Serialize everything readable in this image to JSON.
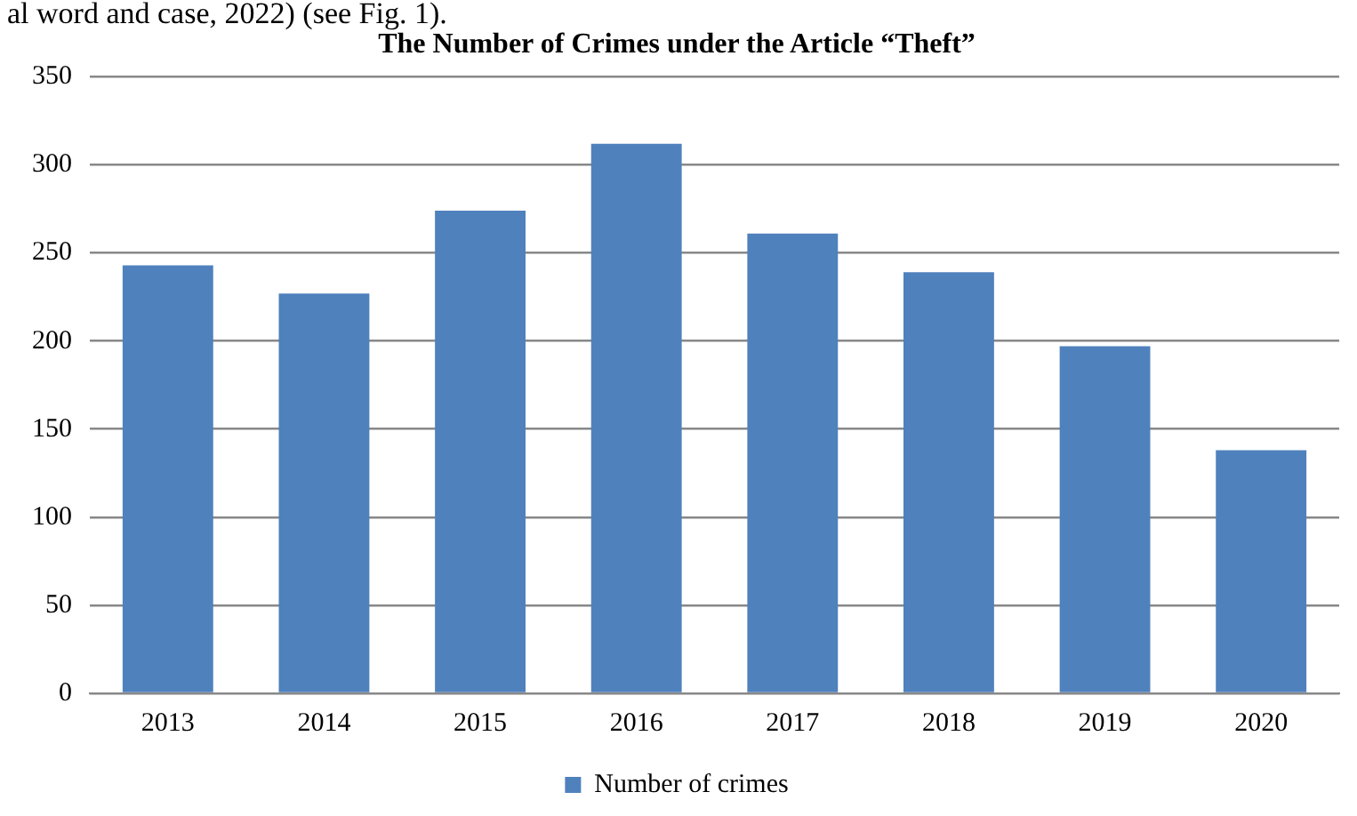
{
  "chart_data": {
    "type": "bar",
    "title": "The Number of Crimes under the Article “Theft”",
    "annotations": [
      "al word and case, 2022) (see Fig. 1)."
    ],
    "categories": [
      "2013",
      "2014",
      "2015",
      "2016",
      "2017",
      "2018",
      "2019",
      "2020"
    ],
    "series": [
      {
        "name": "Number of crimes",
        "color": "#4f81bd",
        "values": [
          243,
          227,
          274,
          312,
          261,
          239,
          197,
          138
        ]
      }
    ],
    "ylim": [
      0,
      350
    ],
    "yticks": [
      0,
      50,
      100,
      150,
      200,
      250,
      300,
      350
    ],
    "grid": "y",
    "legend": "bottom"
  }
}
